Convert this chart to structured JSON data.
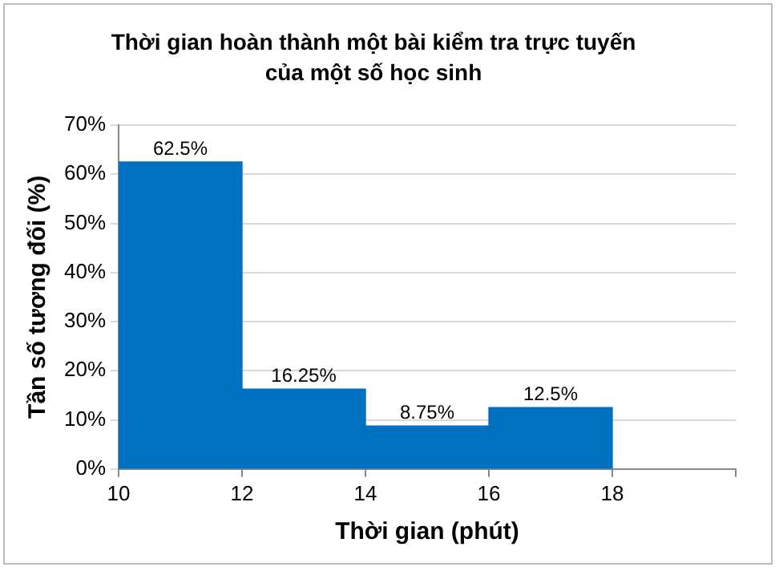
{
  "chart_data": {
    "type": "histogram",
    "title": "Thời gian hoàn thành một bài kiểm tra trực tuyến của một số học sinh",
    "xlabel": "Thời gian (phút)",
    "ylabel": "Tần số tương đối (%)",
    "bins": [
      10,
      12,
      14,
      16,
      18
    ],
    "values": [
      62.5,
      16.25,
      8.75,
      12.5
    ],
    "value_labels": [
      "62.5%",
      "16.25%",
      "8.75%",
      "12.5%"
    ],
    "color": "#0070c0",
    "xlim": [
      10,
      20
    ],
    "xticks": [
      10,
      12,
      14,
      16,
      18,
      {
        "value": 20,
        "label": null
      }
    ],
    "ylim": [
      0,
      70
    ],
    "yticks": [
      {
        "value": 0,
        "label": "0%"
      },
      {
        "value": 10,
        "label": "10%"
      },
      {
        "value": 20,
        "label": "20%"
      },
      {
        "value": 30,
        "label": "30%"
      },
      {
        "value": 40,
        "label": "40%"
      },
      {
        "value": 50,
        "label": "50%"
      },
      {
        "value": 60,
        "label": "60%"
      },
      {
        "value": 70,
        "label": "70%"
      }
    ],
    "grid": "y",
    "legend": false
  }
}
